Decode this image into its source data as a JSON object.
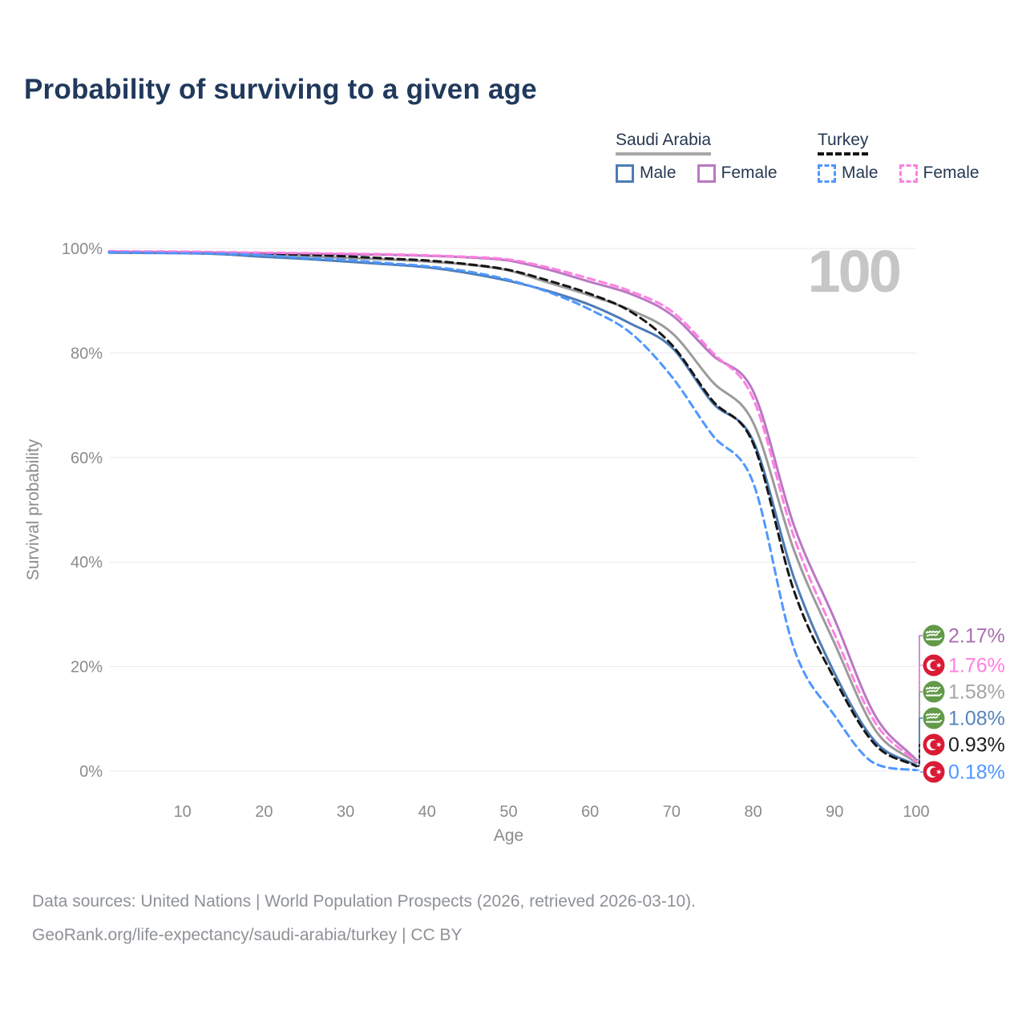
{
  "title": "Probability of surviving to a given age",
  "watermark": "100",
  "legend": {
    "groups": [
      {
        "name": "Saudi Arabia",
        "underline_style": "solid",
        "underline_color": "#a7a7a7",
        "items": [
          {
            "label": "Male",
            "series": "sa-male"
          },
          {
            "label": "Female",
            "series": "sa-female"
          }
        ]
      },
      {
        "name": "Turkey",
        "underline_style": "dashed",
        "underline_color": "#141414",
        "items": [
          {
            "label": "Male",
            "series": "tr-male"
          },
          {
            "label": "Female",
            "series": "tr-female"
          }
        ]
      }
    ]
  },
  "flag_colors": {
    "saudi-arabia": "#639a49",
    "turkey": "#d91b35"
  },
  "chart_data": {
    "type": "line",
    "title": "Probability of surviving to a given age",
    "xlabel": "Age",
    "ylabel": "Survival probability",
    "xlim": [
      0,
      100
    ],
    "ylim": [
      0,
      100
    ],
    "grid": "horizontal-only",
    "gridline_color": "#e9e9e9",
    "tick_color": "#8b8b8b",
    "watermark": "100",
    "x_ticks": [
      10,
      20,
      30,
      40,
      50,
      60,
      70,
      80,
      90,
      100
    ],
    "y_ticks": [
      "0%",
      "20%",
      "40%",
      "60%",
      "80%",
      "100%"
    ],
    "ages": [
      1,
      5,
      10,
      15,
      20,
      25,
      30,
      35,
      40,
      45,
      50,
      55,
      60,
      65,
      70,
      75,
      80,
      85,
      90,
      95,
      100
    ],
    "series": [
      {
        "id": "sa-total",
        "name": "Saudi Arabia — Both sexes",
        "country": "Saudi Arabia",
        "sex": "Both",
        "color": "#9b9b9b",
        "dash": "solid",
        "flag": "saudi-arabia",
        "end_label": "1.58%",
        "label_color": "#a5a5a5",
        "values": [
          99.3,
          99.25,
          99.2,
          99.0,
          98.8,
          98.5,
          98.2,
          97.9,
          97.5,
          96.9,
          95.8,
          93.4,
          91.0,
          88.2,
          83.9,
          74.5,
          66.7,
          42.3,
          24.4,
          7.8,
          1.58
        ]
      },
      {
        "id": "sa-male",
        "name": "Saudi Arabia — Male",
        "country": "Saudi Arabia",
        "sex": "Male",
        "color": "#4d7cb5",
        "dash": "solid",
        "flag": "saudi-arabia",
        "end_label": "1.08%",
        "label_color": "#5584bc",
        "values": [
          99.2,
          99.15,
          99.1,
          98.9,
          98.4,
          98.0,
          97.5,
          97.0,
          96.4,
          95.3,
          93.8,
          91.8,
          89.2,
          85.6,
          81.1,
          70.5,
          63.2,
          37.0,
          18.7,
          5.6,
          1.08
        ]
      },
      {
        "id": "sa-female",
        "name": "Saudi Arabia — Female",
        "country": "Saudi Arabia",
        "sex": "Female",
        "color": "#ba77c3",
        "dash": "solid",
        "flag": "saudi-arabia",
        "end_label": "2.17%",
        "label_color": "#a86fae",
        "values": [
          99.4,
          99.35,
          99.3,
          99.2,
          99.1,
          99.0,
          98.9,
          98.8,
          98.6,
          98.3,
          97.7,
          95.9,
          93.6,
          91.3,
          87.3,
          79.6,
          72.7,
          47.0,
          29.0,
          10.5,
          2.17
        ]
      },
      {
        "id": "tr-total",
        "name": "Turkey — Both sexes",
        "country": "Turkey",
        "sex": "Both",
        "color": "#161616",
        "dash": "dashed",
        "flag": "turkey",
        "end_label": "0.93%",
        "label_color": "#1d1d1d",
        "values": [
          99.4,
          99.3,
          99.25,
          99.2,
          99.0,
          98.8,
          98.5,
          98.1,
          97.7,
          97.0,
          95.9,
          93.8,
          91.3,
          87.9,
          81.6,
          70.9,
          62.7,
          34.5,
          17.6,
          5.0,
          0.93
        ]
      },
      {
        "id": "tr-female",
        "name": "Turkey — Female",
        "country": "Turkey",
        "sex": "Female",
        "color": "#ff80e0",
        "dash": "dashed",
        "flag": "turkey",
        "end_label": "1.76%",
        "label_color": "#ff80e0",
        "values": [
          99.5,
          99.45,
          99.4,
          99.3,
          99.2,
          99.1,
          99.0,
          98.9,
          98.7,
          98.4,
          97.9,
          96.3,
          94.2,
          91.8,
          88.0,
          80.1,
          71.3,
          44.8,
          26.1,
          9.2,
          1.76
        ]
      },
      {
        "id": "tr-male",
        "name": "Turkey — Male",
        "country": "Turkey",
        "sex": "Male",
        "color": "#4f97ff",
        "dash": "dashed",
        "flag": "turkey",
        "end_label": "0.18%",
        "label_color": "#4f97ff",
        "values": [
          99.3,
          99.2,
          99.1,
          99.0,
          98.7,
          98.2,
          97.8,
          97.2,
          96.6,
          95.6,
          94.0,
          91.6,
          88.3,
          83.8,
          75.5,
          64.3,
          55.2,
          23.5,
          10.6,
          1.4,
          0.18
        ]
      }
    ]
  },
  "footer": {
    "line1": "Data sources: United Nations | World Population Prospects (2026, retrieved 2026-03-10).",
    "line2": "GeoRank.org/life-expectancy/saudi-arabia/turkey | CC BY"
  }
}
